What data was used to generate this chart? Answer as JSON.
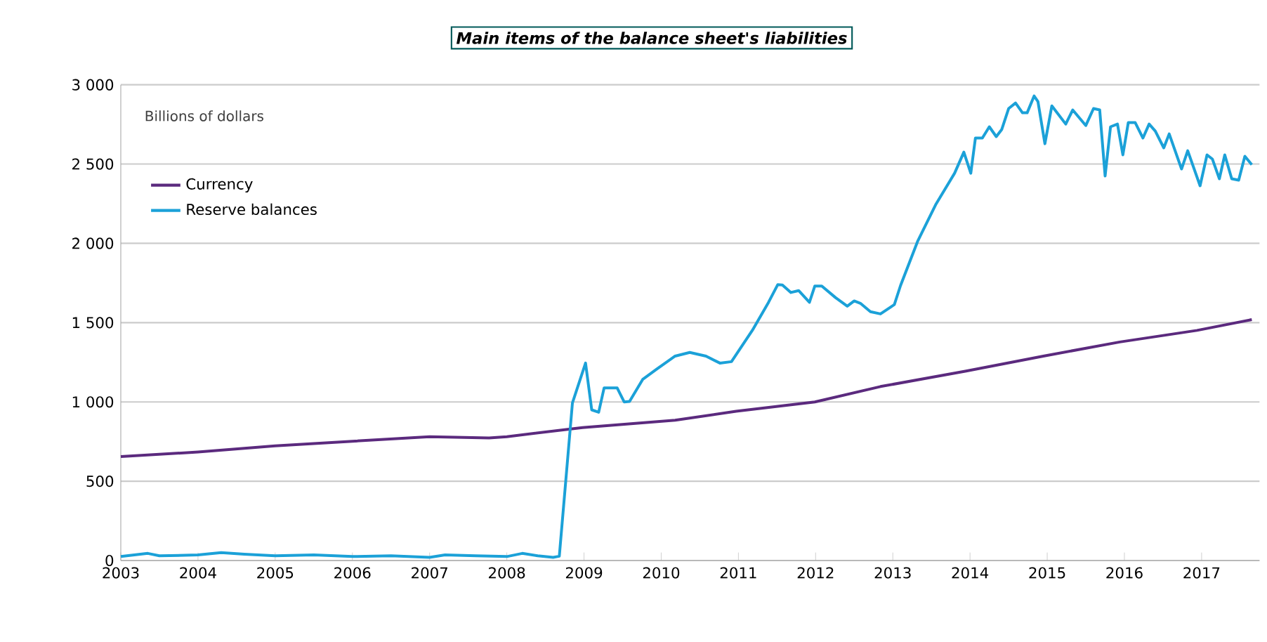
{
  "chart_data": {
    "type": "line",
    "title": "Main items of the balance sheet's liabilities",
    "ylabel": "Billions of dollars",
    "xlim": [
      2003,
      2017.75
    ],
    "xticks": [
      2003,
      2004,
      2005,
      2006,
      2007,
      2008,
      2009,
      2010,
      2011,
      2012,
      2013,
      2014,
      2015,
      2016,
      2017
    ],
    "ylim": [
      0,
      3000
    ],
    "yticks": [
      0,
      500,
      {
        "value": 1000,
        "label": "1 000"
      },
      {
        "value": 1500,
        "label": "1 500"
      },
      {
        "value": 2000,
        "label": "2 000"
      },
      {
        "value": 2500,
        "label": "2 500"
      },
      {
        "value": 3000,
        "label": "3 000"
      }
    ],
    "grid": "y",
    "legend": "top left",
    "series": [
      {
        "name": "Currency",
        "color": "#5b2a7e",
        "x": [
          2003,
          2004,
          2005,
          2006,
          2007,
          2007.77,
          2008,
          2008.98,
          2010.18,
          2010.97,
          2011.99,
          2012.84,
          2013.95,
          2014.95,
          2015.94,
          2016.94,
          2017.65
        ],
        "values": [
          655,
          684,
          723,
          752,
          781,
          773,
          781,
          838,
          885,
          941,
          1000,
          1097,
          1195,
          1289,
          1378,
          1451,
          1519
        ]
      },
      {
        "name": "Reserve balances",
        "color": "#1ba1d8",
        "x": [
          2003,
          2003.35,
          2003.5,
          2004,
          2004.3,
          2004.6,
          2005,
          2005.5,
          2006,
          2006.5,
          2007,
          2007.2,
          2007.6,
          2008,
          2008.2,
          2008.4,
          2008.6,
          2008.68,
          2008.85,
          2009.02,
          2009.1,
          2009.19,
          2009.26,
          2009.43,
          2009.52,
          2009.59,
          2009.76,
          2009.94,
          2010.18,
          2010.37,
          2010.58,
          2010.76,
          2010.91,
          2011.18,
          2011.39,
          2011.51,
          2011.57,
          2011.68,
          2011.78,
          2011.92,
          2011.99,
          2012.08,
          2012.26,
          2012.41,
          2012.5,
          2012.58,
          2012.71,
          2012.84,
          2013.02,
          2013.1,
          2013.32,
          2013.56,
          2013.8,
          2013.92,
          2014.01,
          2014.07,
          2014.16,
          2014.25,
          2014.34,
          2014.41,
          2014.5,
          2014.59,
          2014.68,
          2014.74,
          2014.83,
          2014.88,
          2014.97,
          2015.06,
          2015.24,
          2015.33,
          2015.5,
          2015.6,
          2015.68,
          2015.75,
          2015.82,
          2015.91,
          2015.98,
          2016.05,
          2016.14,
          2016.24,
          2016.32,
          2016.4,
          2016.51,
          2016.58,
          2016.74,
          2016.82,
          2016.98,
          2017.07,
          2017.14,
          2017.23,
          2017.3,
          2017.39,
          2017.48,
          2017.56,
          2017.65
        ],
        "values": [
          25,
          45,
          30,
          35,
          50,
          40,
          30,
          35,
          25,
          30,
          20,
          35,
          30,
          25,
          45,
          30,
          20,
          27,
          994,
          1245,
          950,
          935,
          1088,
          1088,
          1000,
          1003,
          1142,
          1206,
          1289,
          1312,
          1289,
          1245,
          1254,
          1451,
          1628,
          1740,
          1737,
          1690,
          1702,
          1628,
          1731,
          1731,
          1657,
          1604,
          1637,
          1622,
          1569,
          1555,
          1614,
          1734,
          2011,
          2248,
          2442,
          2575,
          2442,
          2664,
          2664,
          2735,
          2673,
          2717,
          2850,
          2885,
          2823,
          2823,
          2929,
          2894,
          2628,
          2867,
          2752,
          2841,
          2743,
          2850,
          2841,
          2425,
          2735,
          2752,
          2558,
          2761,
          2761,
          2664,
          2752,
          2708,
          2602,
          2690,
          2469,
          2584,
          2363,
          2558,
          2531,
          2407,
          2558,
          2407,
          2398,
          2549,
          2496
        ]
      }
    ]
  }
}
